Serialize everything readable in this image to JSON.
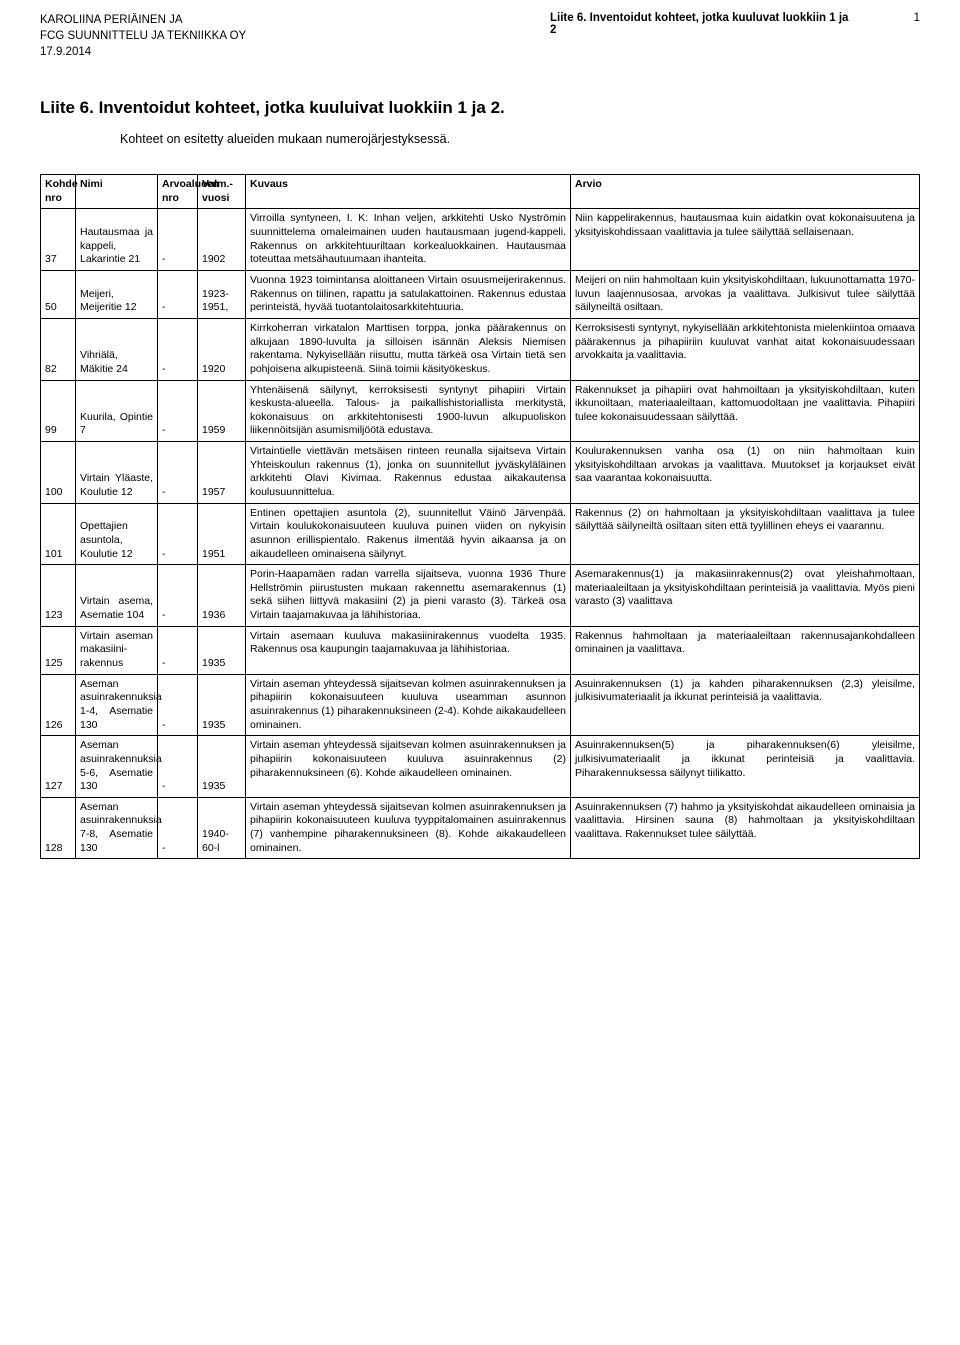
{
  "header": {
    "author": "KAROLIINA PERIÄINEN JA",
    "company": "FCG SUUNNITTELU JA TEKNIIKKA OY",
    "date": "17.9.2014",
    "doc_title": "Liite 6. Inventoidut kohteet, jotka kuuluvat luokkiin 1 ja 2",
    "page_number": "1"
  },
  "title": "Liite 6. Inventoidut kohteet, jotka kuuluivat luokkiin 1 ja 2.",
  "subtitle": "Kohteet on esitetty alueiden mukaan numerojärjestyksessä.",
  "columns": [
    "Kohde nro",
    "Nimi",
    "Arvoalueen nro",
    "Valm.-vuosi",
    "Kuvaus",
    "Arvio"
  ],
  "rows": [
    {
      "nro": "37",
      "nimi": "Hautausmaa ja kappeli, Lakarintie 21",
      "arvo": "-",
      "vuosi": "1902",
      "kuvaus": "Virroilla syntyneen, I. K: Inhan veljen, arkkitehti Usko Nyströmin suunnittelema omaleimainen uuden hautausmaan jugend-kappeli. Rakennus on arkkitehtuuriltaan korkealuokkainen. Hautausmaa toteuttaa metsähautuumaan ihanteita.",
      "arvio": "Niin kappelirakennus, hautausmaa kuin aidatkin ovat kokonaisuutena ja yksityiskohdissaan vaalittavia ja tulee säilyttää sellaisenaan."
    },
    {
      "nro": "50",
      "nimi": "Meijeri, Meijeritie 12",
      "arvo": "-",
      "vuosi": "1923-1951,",
      "kuvaus": "Vuonna 1923 toimintansa aloittaneen Virtain osuusmeijerirakennus. Rakennus on tiilinen, rapattu ja satulakattoinen. Rakennus edustaa perinteistä, hyvää tuotantolaitosarkkitehtuuria.",
      "arvio": "Meijeri on niin hahmoltaan kuin yksityiskohdiltaan, lukuunottamatta 1970-luvun laajennusosaa, arvokas ja vaalittava. Julkisivut tulee säilyttää säilyneiltä osiltaan."
    },
    {
      "nro": "82",
      "nimi": "Vihriälä, Mäkitie 24",
      "arvo": "-",
      "vuosi": "1920",
      "kuvaus": "Kirrkoherran virkatalon Marttisen torppa, jonka päärakennus on alkujaan 1890-luvulta ja silloisen isännän Aleksis Niemisen rakentama. Nykyisellään riisuttu, mutta tärkeä osa Virtain tietä sen pohjoisena alkupisteenä. Siinä toimii käsityökeskus.",
      "arvio": "Kerroksisesti syntynyt, nykyisellään arkkitehtonista mielenkiintoa omaava päärakennus ja pihapiiriin kuuluvat vanhat aitat kokonaisuudessaan arvokkaita ja vaalittavia."
    },
    {
      "nro": "99",
      "nimi": "Kuurila, Opintie 7",
      "arvo": "-",
      "vuosi": "1959",
      "kuvaus": "Yhtenäisenä säilynyt, kerroksisesti syntynyt pihapiiri Virtain keskusta-alueella. Talous- ja paikallishistoriallista merkitystä, kokonaisuus on arkkitehtonisesti 1900-luvun alkupuoliskon liikennöitsijän asumismiljöötä edustava.",
      "arvio": "Rakennukset ja pihapiiri ovat hahmoiltaan ja yksityiskohdiltaan, kuten ikkunoiltaan, materiaaleiltaan, kattomuodoltaan jne vaalittavia. Pihapiiri tulee kokonaisuudessaan säilyttää."
    },
    {
      "nro": "100",
      "nimi": "Virtain Yläaste, Koulutie 12",
      "arvo": "-",
      "vuosi": "1957",
      "kuvaus": "Virtaintielle viettävän metsäisen rinteen reunalla sijaitseva Virtain Yhteiskoulun rakennus (1), jonka on suunnitellut jyväskyläläinen arkkitehti Olavi Kivimaa. Rakennus edustaa aikakautensa koulusuunnittelua.",
      "arvio": "Koulurakennuksen vanha osa (1) on niin hahmoltaan kuin yksityiskohdiltaan arvokas ja vaalittava. Muutokset ja korjaukset eivät saa vaarantaa kokonaisuutta."
    },
    {
      "nro": "101",
      "nimi": "Opettajien asuntola, Koulutie 12",
      "arvo": "-",
      "vuosi": "1951",
      "kuvaus": "Entinen opettajien asuntola (2), suunnitellut Väinö Järvenpää. Virtain koulukokonaisuuteen kuuluva puinen viiden on nykyisin asunnon erillispientalo. Rakenus ilmentää hyvin aikaansa ja on aikaudelleen ominaisena säilynyt.",
      "arvio": "Rakennus (2) on hahmoltaan ja yksityiskohdiltaan vaalittava ja tulee säilyttää säilyneiltä osiltaan siten että tyylillinen eheys ei vaarannu."
    },
    {
      "nro": "123",
      "nimi": "Virtain asema, Asematie 104",
      "arvo": "-",
      "vuosi": "1936",
      "kuvaus": "Porin-Haapamäen radan varrella sijaitseva, vuonna 1936 Thure Hellströmin piirustusten mukaan rakennettu asemarakennus (1) sekä siihen liittyvä makasiini (2) ja pieni varasto (3). Tärkeä osa Virtain taajamakuvaa ja lähihistoriaa.",
      "arvio": "Asemarakennus(1) ja makasiinrakennus(2) ovat yleishahmoltaan, materiaaleiltaan ja yksityiskohdiltaan perinteisiä ja vaalittavia. Myös pieni varasto (3) vaalittava"
    },
    {
      "nro": "125",
      "nimi": "Virtain aseman makasiini-rakennus",
      "arvo": "-",
      "vuosi": "1935",
      "kuvaus": "Virtain asemaan kuuluva makasiinirakennus vuodelta 1935. Rakennus osa kaupungin taajamakuvaa ja lähihistoriaa.",
      "arvio": "Rakennus hahmoltaan ja materiaaleiltaan rakennusajankohdalleen ominainen ja vaalittava."
    },
    {
      "nro": "126",
      "nimi": "Aseman asuinrakennuksia 1-4, Asematie 130",
      "arvo": "-",
      "vuosi": "1935",
      "kuvaus": "Virtain aseman yhteydessä sijaitsevan kolmen asuinrakennuksen ja pihapiirin kokonaisuuteen kuuluva useamman asunnon asuinrakennus (1) piharakennuksineen (2-4). Kohde aikakaudelleen ominainen.",
      "arvio": "Asuinrakennuksen (1) ja kahden piharakennuksen (2,3) yleisilme, julkisivumateriaalit ja ikkunat perinteisiä ja vaalittavia."
    },
    {
      "nro": "127",
      "nimi": "Aseman asuinrakennuksia 5-6, Asematie 130",
      "arvo": "-",
      "vuosi": "1935",
      "kuvaus": "Virtain aseman yhteydessä sijaitsevan kolmen asuinrakennuksen ja pihapiirin kokonaisuuteen kuuluva asuinrakennus (2) piharakennuksineen (6). Kohde aikaudelleen ominainen.",
      "arvio": "Asuinrakennuksen(5) ja piharakennuksen(6) yleisilme, julkisivumateriaalit ja ikkunat perinteisiä ja vaalittavia. Piharakennuksessa säilynyt tiilikatto."
    },
    {
      "nro": "128",
      "nimi": "Aseman asuinrakennuksia 7-8, Asematie 130",
      "arvo": "-",
      "vuosi": "1940-60-l",
      "kuvaus": "Virtain aseman yhteydessä sijaitsevan kolmen asuinrakennuksen ja pihapiirin kokonaisuuteen kuuluva tyyppitalomainen asuinrakennus (7) vanhempine piharakennuksineen (8). Kohde aikakaudelleen ominainen.",
      "arvio": "Asuinrakennuksen (7) hahmo ja yksityiskohdat aikaudelleen ominaisia ja vaalittavia. Hirsinen sauna (8) hahmoltaan ja yksityiskohdiltaan vaalittava. Rakennukset tulee säilyttää."
    }
  ]
}
